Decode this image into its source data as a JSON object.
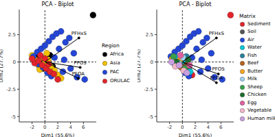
{
  "chart_data": [
    {
      "type": "scatter",
      "title": "PCA - Biplot",
      "x_label": "Dim1 (55.6%)",
      "y_label": "Dim2 (27.7%)",
      "xlim": [
        -4,
        8
      ],
      "xticks": [
        -2,
        0,
        2,
        4,
        6
      ],
      "ylim": [
        -5.5,
        4.8
      ],
      "yticks": [
        -5,
        -2.5,
        0,
        2.5
      ],
      "grid": false,
      "legend": "right",
      "legend_title": "Region",
      "marker": "circle",
      "reference_lines": {
        "x": 0,
        "y": 0
      },
      "vectors": [
        {
          "label": "PFHxS",
          "from": [
            0,
            0
          ],
          "to": [
            5.3,
            2.2
          ]
        },
        {
          "label": "PFOS",
          "from": [
            0,
            0
          ],
          "to": [
            5.5,
            -0.5
          ]
        },
        {
          "label": "PFOA",
          "from": [
            0,
            0
          ],
          "to": [
            5.2,
            -1.5
          ]
        }
      ],
      "series": [
        {
          "name": "Africa",
          "color": "#000000",
          "points": [
            [
              -0.5,
              0.3
            ],
            [
              0.2,
              -0.2
            ],
            [
              -1,
              0.5
            ],
            [
              0.5,
              0.1
            ],
            [
              1.2,
              -0.4
            ],
            [
              7.5,
              4.3
            ],
            [
              -0.3,
              -0.6
            ],
            [
              0.8,
              0.6
            ]
          ]
        },
        {
          "name": "Asia",
          "color": "#f2c200",
          "points": [
            [
              -1.5,
              0.2
            ],
            [
              -1,
              -0.3
            ],
            [
              -0.5,
              0.4
            ],
            [
              0,
              -0.1
            ],
            [
              0.5,
              0.2
            ],
            [
              1,
              -0.5
            ],
            [
              1.5,
              -0.8
            ],
            [
              2,
              -1.2
            ],
            [
              -2,
              0.6
            ],
            [
              -0.8,
              -0.7
            ],
            [
              0.3,
              0.8
            ],
            [
              2.5,
              -1.5
            ]
          ]
        },
        {
          "name": "PAC",
          "color": "#2346d6",
          "points": [
            [
              -1.8,
              0.5
            ],
            [
              -1.2,
              0.9
            ],
            [
              -0.6,
              1.2
            ],
            [
              0,
              1.5
            ],
            [
              0.6,
              1.9
            ],
            [
              1.2,
              2.3
            ],
            [
              1.8,
              2.6
            ],
            [
              2.5,
              2.8
            ],
            [
              3.2,
              1.8
            ],
            [
              3.8,
              2.2
            ],
            [
              2.2,
              1.2
            ],
            [
              1.5,
              0.4
            ],
            [
              3,
              0.2
            ],
            [
              4,
              -0.6
            ],
            [
              5,
              -1.4
            ],
            [
              6.2,
              -1.6
            ],
            [
              0.4,
              -1
            ],
            [
              -0.3,
              -0.5
            ],
            [
              2.8,
              -0.9
            ],
            [
              4.5,
              0.8
            ],
            [
              -1,
              -0.2
            ],
            [
              1,
              -1.3
            ]
          ]
        },
        {
          "name": "ORULAC",
          "color": "#e3242b",
          "points": [
            [
              -1.6,
              -0.1
            ],
            [
              -1,
              0.1
            ],
            [
              -0.4,
              -0.3
            ],
            [
              0.2,
              -0.6
            ],
            [
              0.8,
              -0.9
            ],
            [
              1.4,
              -1.1
            ],
            [
              -2,
              0.3
            ],
            [
              0,
              0.3
            ],
            [
              0.6,
              -0.2
            ],
            [
              2,
              -1.6
            ],
            [
              -0.7,
              0.6
            ]
          ]
        }
      ]
    },
    {
      "type": "scatter",
      "title": "PCA - Biplot",
      "x_label": "Dim1 (55.6%)",
      "y_label": "Dim2 (27.7%)",
      "xlim": [
        -4,
        8
      ],
      "xticks": [
        -2,
        0,
        2,
        4,
        6
      ],
      "ylim": [
        -5.5,
        4.8
      ],
      "yticks": [
        -5,
        -2.5,
        0,
        2.5
      ],
      "grid": false,
      "legend": "right",
      "legend_title": "Matrix",
      "marker": "circle",
      "reference_lines": {
        "x": 0,
        "y": 0
      },
      "vectors": [
        {
          "label": "PFHxS",
          "from": [
            0,
            0
          ],
          "to": [
            5.3,
            2.2
          ]
        },
        {
          "label": "PFOS",
          "from": [
            0,
            0
          ],
          "to": [
            5.6,
            -1.1
          ]
        },
        {
          "label": "PFOA",
          "from": [
            0,
            0
          ],
          "to": [
            5.3,
            -1.9
          ]
        }
      ],
      "series": [
        {
          "name": "Sediment",
          "color": "#e3242b",
          "points": [
            [
              7.5,
              4.3
            ],
            [
              -1.5,
              0.1
            ],
            [
              0.5,
              -0.4
            ],
            [
              1.5,
              -1.2
            ]
          ]
        },
        {
          "name": "Soil",
          "color": "#555555",
          "points": [
            [
              -1,
              0.2
            ],
            [
              0.2,
              -0.3
            ],
            [
              1,
              -0.7
            ]
          ]
        },
        {
          "name": "Air",
          "color": "#2346d6",
          "points": [
            [
              -1.8,
              0.5
            ],
            [
              -1.2,
              0.9
            ],
            [
              -0.6,
              1.2
            ],
            [
              0,
              1.5
            ],
            [
              0.6,
              1.9
            ],
            [
              1.2,
              2.3
            ],
            [
              1.8,
              2.6
            ],
            [
              2.5,
              2.8
            ],
            [
              3.2,
              1.8
            ],
            [
              3.8,
              2.2
            ],
            [
              2.2,
              1.2
            ],
            [
              1.5,
              0.4
            ],
            [
              3,
              0.2
            ],
            [
              4,
              -0.6
            ],
            [
              5,
              -1.4
            ],
            [
              6.2,
              -1.6
            ],
            [
              0.4,
              -1
            ],
            [
              2.8,
              -0.9
            ],
            [
              4.5,
              0.8
            ],
            [
              1,
              -1.3
            ]
          ]
        },
        {
          "name": "Water",
          "color": "#00c8d8",
          "points": [
            [
              -0.8,
              0.4
            ],
            [
              0.3,
              0.1
            ],
            [
              1.2,
              -0.9
            ]
          ]
        },
        {
          "name": "Fish",
          "color": "#2a7f9e",
          "points": [
            [
              -1.2,
              -0.2
            ],
            [
              0.6,
              0.5
            ]
          ]
        },
        {
          "name": "Beef",
          "color": "#b5651d",
          "points": [
            [
              -0.2,
              -0.5
            ],
            [
              0.8,
              -0.2
            ]
          ]
        },
        {
          "name": "Butter",
          "color": "#f5a623",
          "points": [
            [
              -1.6,
              0.3
            ],
            [
              -0.4,
              0.2
            ]
          ]
        },
        {
          "name": "Milk",
          "color": "#a0d0f0",
          "points": [
            [
              -0.6,
              -0.1
            ],
            [
              0.1,
              0.4
            ]
          ]
        },
        {
          "name": "Sheep",
          "color": "#3aa04a",
          "points": [
            [
              -1.4,
              0.5
            ],
            [
              0.4,
              -0.6
            ]
          ]
        },
        {
          "name": "Chicken",
          "color": "#1e6b2e",
          "points": [
            [
              -0.9,
              0
            ],
            [
              0.9,
              0.2
            ]
          ]
        },
        {
          "name": "Egg",
          "color": "#e060a0",
          "points": [
            [
              -0.3,
              0.6
            ],
            [
              1.1,
              -0.3
            ]
          ]
        },
        {
          "name": "Vegetable",
          "color": "#f4b6c8",
          "points": [
            [
              -1.1,
              -0.4
            ],
            [
              0.2,
              -0.8
            ]
          ]
        },
        {
          "name": "Human milk",
          "color": "#c8a0e0",
          "points": [
            [
              -1.7,
              0
            ],
            [
              -0.5,
              -0.3
            ],
            [
              0.7,
              -1
            ]
          ]
        }
      ]
    }
  ]
}
